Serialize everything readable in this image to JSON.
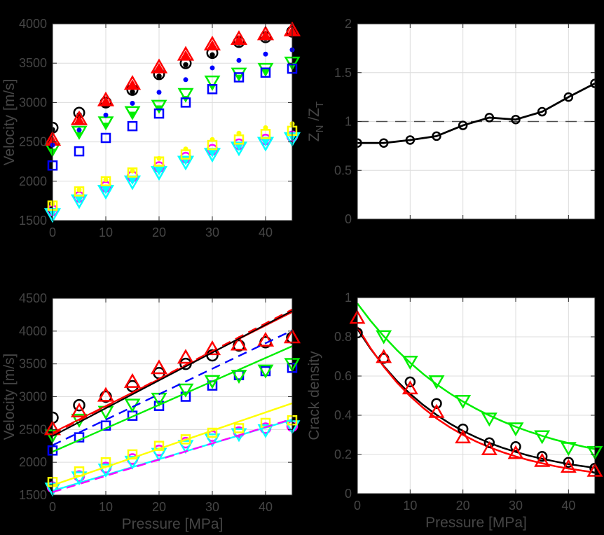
{
  "figure": {
    "background": "#000000",
    "plot_background": "#ffffff",
    "grid_color": "#dcdcdc",
    "axis_color": "#262626",
    "text_color": "#454545",
    "tick_font_size": 18,
    "label_font_size": 21
  },
  "chart_data": [
    {
      "id": "velocity-measured",
      "type": "scatter",
      "xlabel": "",
      "ylabel": "Velocity [m/s]",
      "xlim": [
        0,
        45
      ],
      "ylim": [
        1500,
        4000
      ],
      "xticks": [
        0,
        10,
        20,
        30,
        40
      ],
      "xtick_labels": [
        "0",
        "10",
        "20",
        "30",
        "40"
      ],
      "yticks": [
        1500,
        2000,
        2500,
        3000,
        3500,
        4000
      ],
      "ytick_labels": [
        "1500",
        "2000",
        "2500",
        "3000",
        "3500",
        "4000"
      ],
      "grid": true,
      "lines_on_top": false,
      "x": [
        0,
        5,
        10,
        15,
        20,
        25,
        30,
        35,
        40,
        45
      ],
      "series": [
        {
          "name": "vp-green-filled-tri",
          "marker": "triangle-down",
          "color": "#00ee00",
          "filled": true,
          "size": 9,
          "values": [
            2370,
            2580,
            2700,
            2840,
            2920,
            3040,
            3190,
            3310,
            3380,
            3460
          ]
        },
        {
          "name": "vp-green-open-tri",
          "marker": "triangle-down",
          "color": "#00ee00",
          "filled": false,
          "size": 15,
          "values": [
            2400,
            2620,
            2740,
            2870,
            2950,
            3100,
            3260,
            3360,
            3420,
            3500
          ]
        },
        {
          "name": "vp-blue-open-square",
          "marker": "square",
          "color": "#0000ff",
          "filled": false,
          "size": 12,
          "values": [
            2200,
            2380,
            2550,
            2700,
            2860,
            3000,
            3170,
            3320,
            3380,
            3430
          ]
        },
        {
          "name": "vp-black-filled-dot",
          "marker": "circle",
          "color": "#000000",
          "filled": true,
          "size": 7.5,
          "values": [
            2655,
            2845,
            2975,
            3135,
            3335,
            3480,
            3605,
            3755,
            3815,
            3880
          ]
        },
        {
          "name": "vp-black-open-circle",
          "marker": "circle",
          "color": "#000000",
          "filled": false,
          "size": 14.5,
          "values": [
            2680,
            2870,
            3000,
            3160,
            3360,
            3500,
            3630,
            3770,
            3830,
            3900
          ]
        },
        {
          "name": "vp-red-filled-tri",
          "marker": "triangle-up",
          "color": "#ff0000",
          "filled": true,
          "size": 12,
          "values": [
            2525,
            2785,
            3025,
            3235,
            3445,
            3605,
            3735,
            3805,
            3865,
            3915
          ]
        },
        {
          "name": "vp-red-open-tri",
          "marker": "triangle-up",
          "color": "#ff0000",
          "filled": false,
          "size": 16,
          "values": [
            2540,
            2800,
            3040,
            3250,
            3460,
            3620,
            3750,
            3820,
            3880,
            3930
          ]
        },
        {
          "name": "vp-blue-filled-dot",
          "marker": "circle",
          "color": "#0000ff",
          "filled": true,
          "size": 7,
          "values": [
            2460,
            2650,
            2840,
            2990,
            3130,
            3290,
            3440,
            3535,
            3615,
            3670
          ]
        },
        {
          "name": "vs-magenta-open-circle",
          "marker": "circle",
          "color": "#ff00ff",
          "filled": false,
          "size": 14,
          "values": [
            1630,
            1800,
            1930,
            2060,
            2180,
            2300,
            2400,
            2470,
            2530,
            2570
          ]
        },
        {
          "name": "vs-cyan-open-tri",
          "marker": "triangle-down",
          "color": "#00ffff",
          "filled": false,
          "size": 16,
          "values": [
            1570,
            1745,
            1865,
            1985,
            2105,
            2235,
            2335,
            2415,
            2475,
            2535
          ]
        },
        {
          "name": "vs-cyan-filled-tri",
          "marker": "triangle-down",
          "color": "#00ffff",
          "filled": true,
          "size": 12,
          "values": [
            1600,
            1770,
            1890,
            2010,
            2130,
            2260,
            2360,
            2440,
            2500,
            2560
          ]
        },
        {
          "name": "vs-yellow-open-square",
          "marker": "square",
          "color": "#ffff00",
          "filled": false,
          "size": 12,
          "values": [
            1690,
            1870,
            2000,
            2110,
            2250,
            2340,
            2460,
            2530,
            2600,
            2640
          ]
        },
        {
          "name": "vs-yellow-filled-dot",
          "marker": "circle",
          "color": "#ffff00",
          "filled": true,
          "size": 7,
          "values": [
            1710,
            1890,
            2020,
            2130,
            2290,
            2410,
            2530,
            2610,
            2680,
            2730
          ]
        }
      ],
      "lines": []
    },
    {
      "id": "zn-zt-ratio",
      "type": "line",
      "xlabel": "",
      "ylabel": "ZN/ZT",
      "ylabel_parts": [
        {
          "text": "Z",
          "sub": false
        },
        {
          "text": "N",
          "sub": true
        },
        {
          "text": "/Z",
          "sub": false
        },
        {
          "text": "T",
          "sub": true
        }
      ],
      "xlim": [
        0,
        45
      ],
      "ylim": [
        0,
        2
      ],
      "xticks": [
        0,
        10,
        20,
        30,
        40
      ],
      "xtick_labels": [],
      "yticks": [
        0,
        0.5,
        1,
        1.5,
        2
      ],
      "ytick_labels": [
        "0",
        "0.5",
        "1",
        "1.5",
        "2"
      ],
      "grid": true,
      "lines_on_top": false,
      "refline": {
        "y": 1,
        "color": "#4d4d4d",
        "style": "dashed",
        "width": 1.6
      },
      "x": [
        0,
        5,
        10,
        15,
        20,
        25,
        30,
        35,
        40,
        45
      ],
      "series": [
        {
          "name": "zn-zt",
          "marker": "circle",
          "color": "#000000",
          "filled": false,
          "size": 11,
          "line": {
            "style": "solid",
            "width": 2.8
          },
          "values": [
            0.78,
            0.78,
            0.81,
            0.85,
            0.96,
            1.04,
            1.02,
            1.1,
            1.25,
            1.39
          ]
        }
      ],
      "lines": []
    },
    {
      "id": "velocity-fitted",
      "type": "scatter+lines",
      "xlabel": "Pressure [MPa]",
      "ylabel": "Velocity [m/s]",
      "xlim": [
        0,
        45
      ],
      "ylim": [
        1500,
        4500
      ],
      "xticks": [
        0,
        10,
        20,
        30,
        40
      ],
      "xtick_labels": [
        "0",
        "10",
        "20",
        "30",
        "40"
      ],
      "yticks": [
        1500,
        2000,
        2500,
        3000,
        3500,
        4000,
        4500
      ],
      "ytick_labels": [
        "1500",
        "2000",
        "2500",
        "3000",
        "3500",
        "4000",
        "4500"
      ],
      "grid": true,
      "lines_on_top": true,
      "x": [
        0,
        5,
        10,
        15,
        20,
        25,
        30,
        35,
        40,
        45
      ],
      "series": [
        {
          "name": "vp-blue-open-square",
          "marker": "square",
          "color": "#0000ff",
          "filled": false,
          "size": 12,
          "values": [
            2180,
            2380,
            2560,
            2710,
            2860,
            3000,
            3170,
            3330,
            3390,
            3440
          ]
        },
        {
          "name": "vp-green-open-tri",
          "marker": "triangle-down",
          "color": "#00ee00",
          "filled": false,
          "size": 15,
          "values": [
            2400,
            2640,
            2760,
            2870,
            2960,
            3100,
            3230,
            3310,
            3390,
            3490
          ]
        },
        {
          "name": "vp-black-open-circle",
          "marker": "circle",
          "color": "#000000",
          "filled": false,
          "size": 15,
          "values": [
            2680,
            2870,
            3000,
            3160,
            3360,
            3500,
            3630,
            3780,
            3830,
            3900
          ]
        },
        {
          "name": "vp-red-open-tri",
          "marker": "triangle-up",
          "color": "#ff0000",
          "filled": false,
          "size": 16,
          "values": [
            2520,
            2790,
            3030,
            3240,
            3450,
            3610,
            3740,
            3810,
            3870,
            3920
          ]
        },
        {
          "name": "vs-magenta-open-circle",
          "marker": "circle",
          "color": "#ff00ff",
          "filled": false,
          "size": 14,
          "values": [
            1620,
            1790,
            1920,
            2050,
            2180,
            2300,
            2400,
            2460,
            2520,
            2550
          ]
        },
        {
          "name": "vs-cyan-open-tri",
          "marker": "triangle-down",
          "color": "#00ffff",
          "filled": false,
          "size": 15,
          "values": [
            1590,
            1760,
            1880,
            2000,
            2120,
            2240,
            2340,
            2420,
            2480,
            2540
          ]
        },
        {
          "name": "vs-yellow-open-square",
          "marker": "square",
          "color": "#ffff00",
          "filled": false,
          "size": 12,
          "values": [
            1700,
            1860,
            2000,
            2120,
            2250,
            2350,
            2450,
            2520,
            2600,
            2640
          ]
        }
      ],
      "lines": [
        {
          "name": "fit-yellow-solid",
          "color": "#ffff00",
          "style": "solid",
          "width": 2.4,
          "x": [
            0,
            45
          ],
          "y": [
            1650,
            2900
          ]
        },
        {
          "name": "fit-cyan-solid",
          "color": "#00ffff",
          "style": "solid",
          "width": 2.4,
          "x": [
            0,
            45
          ],
          "y": [
            1565,
            2650
          ]
        },
        {
          "name": "fit-magenta-dashed",
          "color": "#ff00ff",
          "style": "dashed",
          "width": 2.4,
          "x": [
            0,
            45
          ],
          "y": [
            1545,
            2660
          ]
        },
        {
          "name": "fit-green-solid",
          "color": "#00ee00",
          "style": "solid",
          "width": 2.4,
          "x": [
            0,
            45
          ],
          "y": [
            2160,
            3770
          ]
        },
        {
          "name": "fit-blue-dashed",
          "color": "#0000ff",
          "style": "dashed",
          "width": 2.4,
          "x": [
            0,
            45
          ],
          "y": [
            2260,
            4010
          ]
        },
        {
          "name": "fit-red-solid",
          "color": "#ff0000",
          "style": "solid",
          "width": 2.2,
          "x": [
            0,
            45
          ],
          "y": [
            2450,
            4290
          ]
        },
        {
          "name": "fit-black-solid",
          "color": "#000000",
          "style": "solid",
          "width": 2.2,
          "x": [
            0,
            45
          ],
          "y": [
            2400,
            4310
          ]
        },
        {
          "name": "fit-red-dashed",
          "color": "#ff0000",
          "style": "dashed",
          "width": 2.2,
          "x": [
            0,
            45
          ],
          "y": [
            2430,
            4330
          ]
        }
      ]
    },
    {
      "id": "crack-density",
      "type": "scatter+curves",
      "xlabel": "Pressure [MPa]",
      "ylabel": "Crack density",
      "xlim": [
        0,
        45
      ],
      "ylim": [
        0,
        1
      ],
      "xticks": [
        0,
        10,
        20,
        30,
        40
      ],
      "xtick_labels": [
        "0",
        "10",
        "20",
        "30",
        "40"
      ],
      "yticks": [
        0,
        0.2,
        0.4,
        0.6,
        0.8,
        1
      ],
      "ytick_labels": [
        "0",
        "0.2",
        "0.4",
        "0.6",
        "0.8",
        "1"
      ],
      "grid": true,
      "lines_on_top": false,
      "x": [
        0,
        5,
        10,
        15,
        20,
        25,
        30,
        35,
        40,
        45
      ],
      "series": [
        {
          "name": "crack-black-open-circle",
          "marker": "circle",
          "color": "#000000",
          "filled": false,
          "size": 13,
          "values": [
            0.82,
            0.69,
            0.57,
            0.46,
            0.33,
            0.26,
            0.24,
            0.19,
            0.16,
            0.13
          ]
        },
        {
          "name": "crack-red-open-tri",
          "marker": "triangle-up",
          "color": "#ff0000",
          "filled": false,
          "size": 15,
          "values": [
            0.9,
            0.7,
            0.54,
            0.42,
            0.29,
            0.23,
            0.21,
            0.17,
            0.14,
            0.12
          ]
        },
        {
          "name": "crack-green-open-tri",
          "marker": "triangle-down",
          "color": "#00ee00",
          "filled": false,
          "size": 15,
          "x": [
            5,
            10,
            15,
            20,
            25,
            30,
            35,
            40,
            45
          ],
          "values": [
            0.8,
            0.67,
            0.57,
            0.47,
            0.38,
            0.33,
            0.29,
            0.23,
            0.21
          ]
        }
      ],
      "lines": [
        {
          "name": "fit-green-curve",
          "color": "#00ee00",
          "style": "solid",
          "width": 2.5,
          "x": [
            0,
            2.5,
            5,
            7.5,
            10,
            12.5,
            15,
            17.5,
            20,
            22.5,
            25,
            27.5,
            30,
            32.5,
            35,
            37.5,
            40,
            42.5,
            45
          ],
          "y": [
            0.97,
            0.882,
            0.803,
            0.732,
            0.668,
            0.61,
            0.558,
            0.512,
            0.47,
            0.433,
            0.399,
            0.369,
            0.341,
            0.317,
            0.295,
            0.275,
            0.258,
            0.242,
            0.227
          ]
        },
        {
          "name": "fit-black-curve",
          "color": "#000000",
          "style": "solid",
          "width": 2.5,
          "x": [
            0,
            2.5,
            5,
            7.5,
            10,
            12.5,
            15,
            17.5,
            20,
            22.5,
            25,
            27.5,
            30,
            32.5,
            35,
            37.5,
            40,
            42.5,
            45
          ],
          "y": [
            0.84,
            0.739,
            0.651,
            0.575,
            0.509,
            0.452,
            0.402,
            0.358,
            0.32,
            0.288,
            0.259,
            0.234,
            0.213,
            0.194,
            0.178,
            0.164,
            0.151,
            0.141,
            0.132
          ]
        },
        {
          "name": "fit-red-curve",
          "color": "#ff0000",
          "style": "solid",
          "width": 2.5,
          "x": [
            0,
            2.5,
            5,
            7.5,
            10,
            12.5,
            15,
            17.5,
            20,
            22.5,
            25,
            27.5,
            30,
            32.5,
            35,
            37.5,
            40,
            42.5,
            45
          ],
          "y": [
            0.85,
            0.742,
            0.648,
            0.567,
            0.497,
            0.437,
            0.384,
            0.339,
            0.3,
            0.266,
            0.237,
            0.212,
            0.19,
            0.171,
            0.155,
            0.14,
            0.128,
            0.118,
            0.108
          ]
        }
      ]
    }
  ]
}
